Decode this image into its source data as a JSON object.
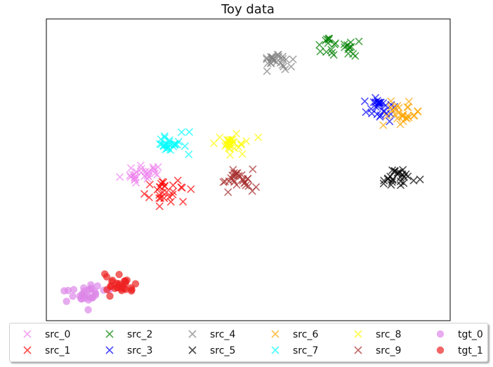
{
  "chart_data": {
    "type": "scatter",
    "title": "Toy data",
    "xlabel": "",
    "ylabel": "",
    "xlim": [
      0,
      100
    ],
    "ylim": [
      0,
      100
    ],
    "grid": false,
    "ticks_visible": false,
    "legend_placement": "bottom",
    "series": [
      {
        "name": "src_0",
        "marker": "x",
        "color": "#ee82ee",
        "center": [
          24,
          49
        ],
        "spread": [
          2.3,
          1.9
        ],
        "count": 28,
        "seed": 11
      },
      {
        "name": "src_1",
        "marker": "x",
        "color": "#ff0000",
        "center": [
          30.5,
          42.5
        ],
        "spread": [
          2.3,
          1.8
        ],
        "count": 28,
        "seed": 23
      },
      {
        "name": "src_2",
        "marker": "x",
        "color": "#008000",
        "center": [
          72.5,
          90.5
        ],
        "spread": [
          2.3,
          1.6
        ],
        "count": 26,
        "seed": 37
      },
      {
        "name": "src_3",
        "marker": "x",
        "color": "#0000ff",
        "center": [
          82.5,
          70.5
        ],
        "spread": [
          2.2,
          1.9
        ],
        "count": 28,
        "seed": 41
      },
      {
        "name": "src_4",
        "marker": "x",
        "color": "#808080",
        "center": [
          57.5,
          86.5
        ],
        "spread": [
          2.2,
          1.6
        ],
        "count": 26,
        "seed": 53
      },
      {
        "name": "src_5",
        "marker": "x",
        "color": "#000000",
        "center": [
          87.5,
          47
        ],
        "spread": [
          2.3,
          1.5
        ],
        "count": 26,
        "seed": 67
      },
      {
        "name": "src_6",
        "marker": "x",
        "color": "#ffa500",
        "center": [
          89,
          68.5
        ],
        "spread": [
          2.6,
          1.8
        ],
        "count": 28,
        "seed": 71
      },
      {
        "name": "src_7",
        "marker": "x",
        "color": "#00ffff",
        "center": [
          30.5,
          58.5
        ],
        "spread": [
          2.0,
          1.6
        ],
        "count": 28,
        "seed": 83
      },
      {
        "name": "src_8",
        "marker": "x",
        "color": "#ffff00",
        "center": [
          44.5,
          58.5
        ],
        "spread": [
          2.6,
          1.7
        ],
        "count": 28,
        "seed": 97
      },
      {
        "name": "src_9",
        "marker": "x",
        "color": "#a52a2a",
        "center": [
          47.5,
          46.5
        ],
        "spread": [
          2.2,
          1.8
        ],
        "count": 28,
        "seed": 101
      },
      {
        "name": "tgt_0",
        "marker": "o",
        "color": "#dd88e8",
        "center": [
          9,
          8.5
        ],
        "spread": [
          2.3,
          1.4
        ],
        "count": 30,
        "seed": 113
      },
      {
        "name": "tgt_1",
        "marker": "o",
        "color": "#ee2222",
        "center": [
          18.5,
          11.5
        ],
        "spread": [
          1.7,
          1.8
        ],
        "count": 30,
        "seed": 127
      }
    ]
  }
}
